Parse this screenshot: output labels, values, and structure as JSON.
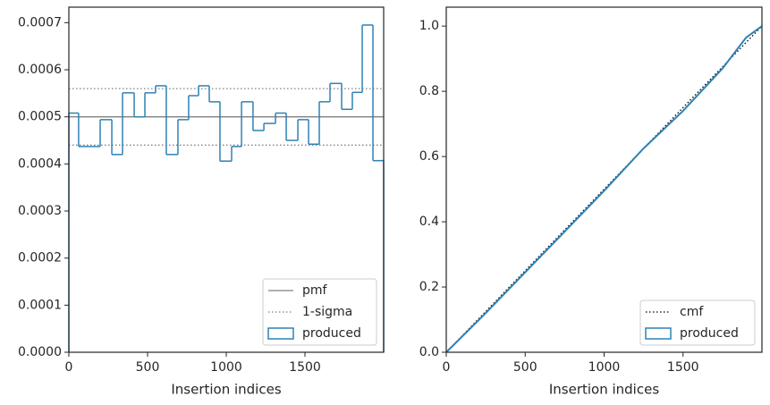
{
  "chart_data": [
    {
      "type": "histogram",
      "xlabel": "Insertion indices",
      "bins": [
        0,
        62,
        199,
        273,
        341,
        415,
        483,
        551,
        619,
        693,
        761,
        824,
        892,
        960,
        1034,
        1097,
        1170,
        1239,
        1313,
        1381,
        1455,
        1523,
        1591,
        1659,
        1733,
        1801,
        1864,
        1932,
        2000
      ],
      "series": [
        {
          "name": "produced",
          "color": "#2e82b5",
          "values": [
            0.000508,
            0.000437,
            0.000494,
            0.00042,
            0.000551,
            0.0005,
            0.000551,
            0.000566,
            0.00042,
            0.000494,
            0.000545,
            0.000566,
            0.000532,
            0.000406,
            0.000437,
            0.000532,
            0.000471,
            0.000486,
            0.000508,
            0.00045,
            0.000494,
            0.000442,
            0.000532,
            0.000571,
            0.000516,
            0.000552,
            0.000695,
            0.000407
          ]
        }
      ],
      "reference_lines": [
        {
          "name": "pmf",
          "values": [
            0.0005
          ],
          "color": "#808080",
          "style": "solid"
        },
        {
          "name": "1-sigma",
          "values": [
            0.00044,
            0.00056
          ],
          "color": "#808080",
          "style": "dotted"
        }
      ],
      "xlim": [
        0,
        2000
      ],
      "xticks": [
        0,
        500,
        1000,
        1500
      ],
      "ylim": [
        0,
        0.000733
      ],
      "yticks": [
        {
          "value": 0,
          "label": "0.0000"
        },
        {
          "value": 0.0001,
          "label": "0.0001"
        },
        {
          "value": 0.0002,
          "label": "0.0002"
        },
        {
          "value": 0.0003,
          "label": "0.0003"
        },
        {
          "value": 0.0004,
          "label": "0.0004"
        },
        {
          "value": 0.0005,
          "label": "0.0005"
        },
        {
          "value": 0.0006,
          "label": "0.0006"
        },
        {
          "value": 0.0007,
          "label": "0.0007"
        }
      ],
      "legend": "lower right"
    },
    {
      "type": "line",
      "xlabel": "Insertion indices",
      "series": [
        {
          "name": "cmf",
          "color": "#000000",
          "style": "dotted",
          "x": [
            0,
            2000
          ],
          "values": [
            0,
            1
          ]
        },
        {
          "name": "produced",
          "color": "#2e82b5",
          "style": "patch",
          "x": [
            0,
            250,
            500,
            750,
            1000,
            1250,
            1500,
            1750,
            1900,
            2000
          ],
          "values": [
            0,
            0.12,
            0.245,
            0.37,
            0.495,
            0.625,
            0.74,
            0.87,
            0.965,
            1.0
          ]
        }
      ],
      "xlim": [
        0,
        2000
      ],
      "xticks": [
        0,
        500,
        1000,
        1500
      ],
      "ylim": [
        0,
        1.058
      ],
      "yticks": [
        {
          "value": 0,
          "label": "0.0"
        },
        {
          "value": 0.2,
          "label": "0.2"
        },
        {
          "value": 0.4,
          "label": "0.4"
        },
        {
          "value": 0.6,
          "label": "0.6"
        },
        {
          "value": 0.8,
          "label": "0.8"
        },
        {
          "value": 1,
          "label": "1.0"
        }
      ],
      "legend": "lower right"
    }
  ]
}
